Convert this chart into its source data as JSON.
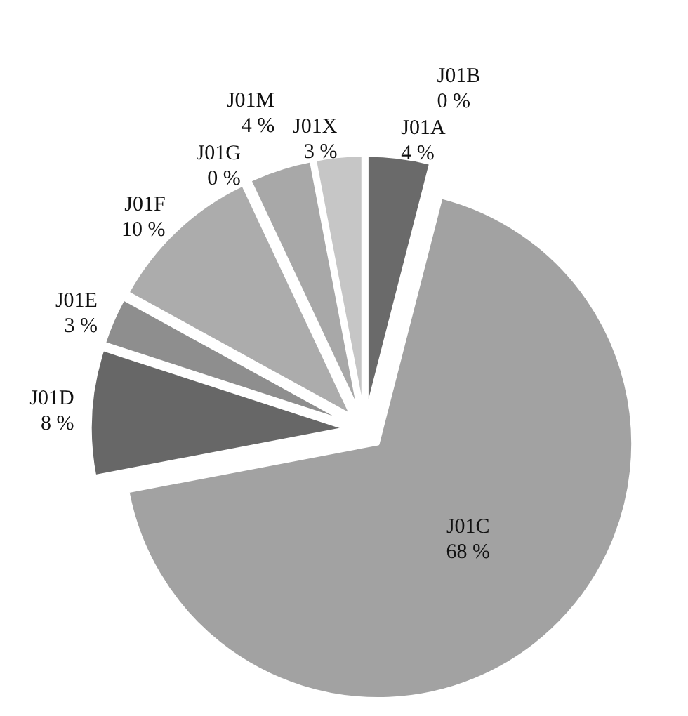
{
  "chart_data": {
    "type": "pie",
    "categories": [
      "J01A",
      "J01B",
      "J01C",
      "J01D",
      "J01E",
      "J01F",
      "J01G",
      "J01M",
      "J01X"
    ],
    "values": [
      4,
      0,
      68,
      8,
      3,
      10,
      0,
      4,
      3
    ],
    "value_labels": [
      "4 %",
      "0 %",
      "68 %",
      "8 %",
      "3 %",
      "10 %",
      "0 %",
      "4 %",
      "3 %"
    ],
    "colors": [
      "#6a6a6a",
      "#8a8a8a",
      "#a2a2a2",
      "#676767",
      "#8e8e8e",
      "#acacac",
      "#9a9a9a",
      "#a8a8a8",
      "#c6c6c6"
    ],
    "legend": false
  }
}
